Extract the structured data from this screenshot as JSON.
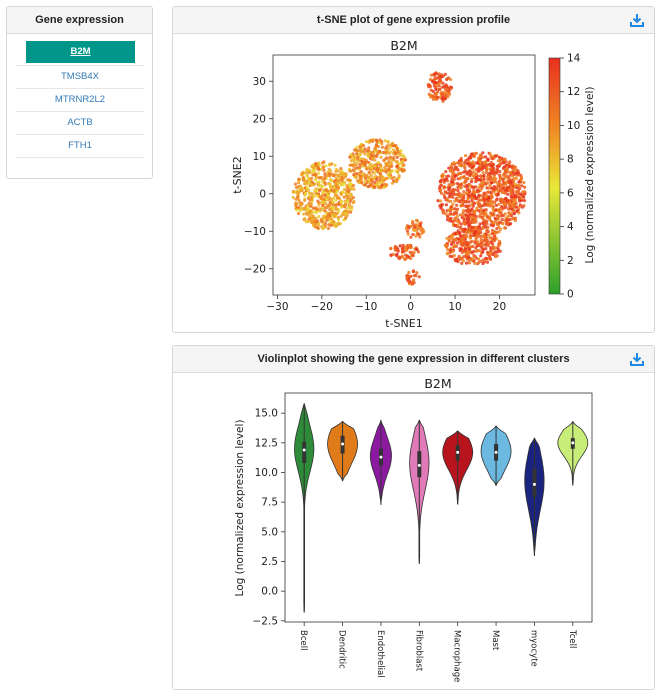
{
  "gene_panel": {
    "title": "Gene expression",
    "genes": [
      "B2M",
      "TMSB4X",
      "MTRNR2L2",
      "ACTB",
      "FTH1"
    ],
    "selected": "B2M"
  },
  "tsne_panel": {
    "title": "t-SNE plot of gene expression profile",
    "download_icon": "download-icon",
    "chart_data": {
      "type": "scatter",
      "title": "B2M",
      "xlabel": "t-SNE1",
      "ylabel": "t-SNE2",
      "xlim": [
        -31,
        28
      ],
      "ylim": [
        -27,
        37
      ],
      "xticks": [
        -30,
        -20,
        -10,
        0,
        10,
        20
      ],
      "yticks": [
        -20,
        -10,
        0,
        10,
        20,
        30
      ],
      "colorbar": {
        "label": "Log (normalized expression level)",
        "min": 0,
        "max": 14,
        "ticks": [
          0,
          2,
          4,
          6,
          8,
          10,
          12,
          14
        ],
        "colors": [
          "#2ca02c",
          "#e8e838",
          "#f08a24",
          "#e8301e"
        ]
      },
      "clusters": [
        {
          "cx": 6.5,
          "cy": 28.5,
          "rx": 3,
          "ry": 4,
          "level": 12
        },
        {
          "cx": -19.5,
          "cy": -0.5,
          "rx": 7,
          "ry": 9,
          "level": 9
        },
        {
          "cx": -7.5,
          "cy": 8,
          "rx": 6.5,
          "ry": 6.5,
          "level": 9.5
        },
        {
          "cx": 16,
          "cy": 0,
          "rx": 10,
          "ry": 11,
          "level": 12
        },
        {
          "cx": 14,
          "cy": -14,
          "rx": 6.5,
          "ry": 5,
          "level": 12
        },
        {
          "cx": 1,
          "cy": -9.5,
          "rx": 2,
          "ry": 2.5,
          "level": 11
        },
        {
          "cx": -1.5,
          "cy": -15.5,
          "rx": 3.5,
          "ry": 2,
          "level": 12
        },
        {
          "cx": 0.5,
          "cy": -22.5,
          "rx": 1.5,
          "ry": 2,
          "level": 12
        }
      ]
    }
  },
  "violin_panel": {
    "title": "Violinplot showing the gene expression in different clusters",
    "download_icon": "download-icon",
    "chart_data": {
      "type": "violin",
      "title": "B2M",
      "ylabel": "Log (normalized expression level)",
      "ylim": [
        -2.6,
        16.7
      ],
      "yticks": [
        -2.5,
        0.0,
        2.5,
        5.0,
        7.5,
        10.0,
        12.5,
        15.0
      ],
      "ytick_labels": [
        "−2.5",
        "0.0",
        "2.5",
        "5.0",
        "7.5",
        "10.0",
        "12.5",
        "15.0"
      ],
      "categories": [
        "Bcell",
        "Dendritic",
        "Endothelial",
        "Fibroblast",
        "Macrophage",
        "Mast",
        "myocyte",
        "Tcell"
      ],
      "series": [
        {
          "color": "#2e8b3a",
          "min": -1.8,
          "max": 15.8,
          "median": 11.9,
          "q1": 10.8,
          "q3": 12.6,
          "peak": 12.0,
          "width": 0.55
        },
        {
          "color": "#e07b1a",
          "min": 9.3,
          "max": 14.3,
          "median": 12.4,
          "q1": 11.6,
          "q3": 13.1,
          "peak": 12.4,
          "width": 0.85
        },
        {
          "color": "#8b1aa0",
          "min": 7.3,
          "max": 14.4,
          "median": 11.3,
          "q1": 10.6,
          "q3": 12.0,
          "peak": 11.4,
          "width": 0.6
        },
        {
          "color": "#e07ab8",
          "min": 2.3,
          "max": 14.4,
          "median": 10.6,
          "q1": 9.6,
          "q3": 11.8,
          "peak": 10.8,
          "width": 0.55
        },
        {
          "color": "#b8141e",
          "min": 7.3,
          "max": 13.5,
          "median": 11.7,
          "q1": 11.0,
          "q3": 12.3,
          "peak": 11.7,
          "width": 0.85
        },
        {
          "color": "#6bb8e0",
          "min": 8.9,
          "max": 13.9,
          "median": 11.7,
          "q1": 11.0,
          "q3": 12.4,
          "peak": 11.8,
          "width": 0.85
        },
        {
          "color": "#1a237e",
          "min": 3.0,
          "max": 12.9,
          "median": 9.0,
          "q1": 7.9,
          "q3": 10.3,
          "peak": 9.3,
          "width": 0.55
        },
        {
          "color": "#c8ed78",
          "min": 8.9,
          "max": 14.3,
          "median": 12.5,
          "q1": 12.0,
          "q3": 12.9,
          "peak": 12.5,
          "width": 0.85
        }
      ]
    }
  }
}
